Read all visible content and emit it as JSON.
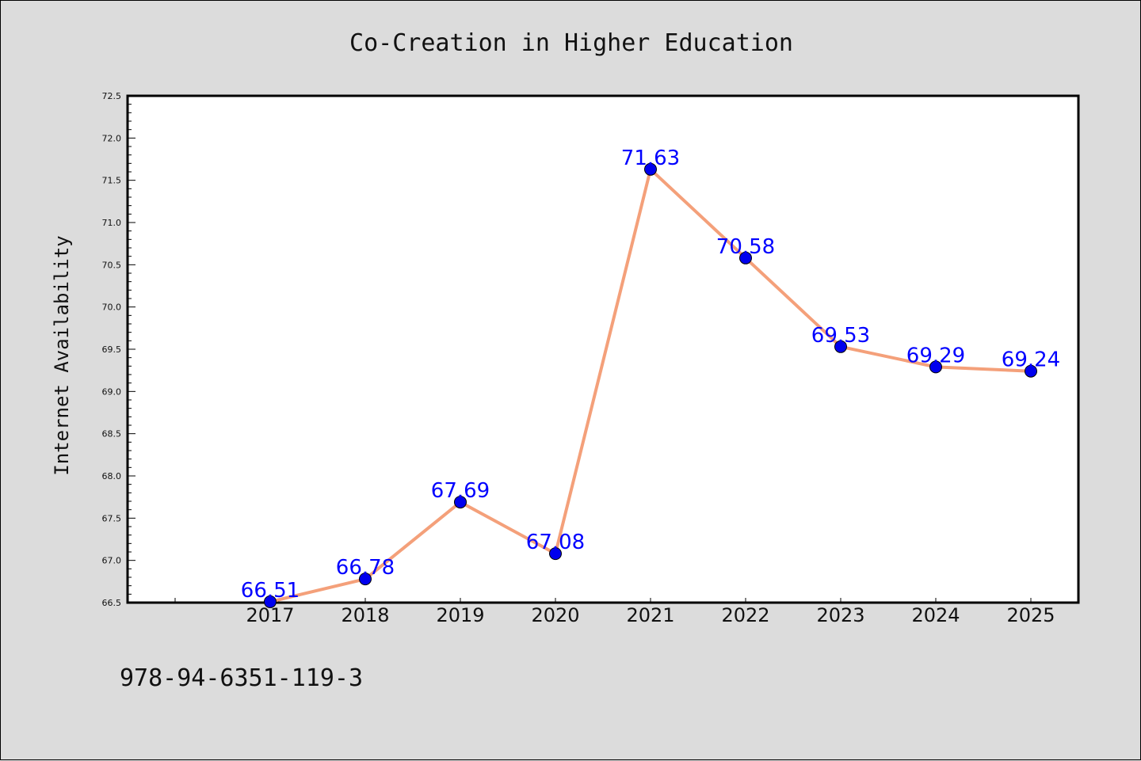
{
  "chart_data": {
    "type": "line",
    "title": "Co-Creation in Higher Education",
    "xlabel": "",
    "ylabel": "Internet Availability",
    "categories": [
      "2017",
      "2018",
      "2019",
      "2020",
      "2021",
      "2022",
      "2023",
      "2024",
      "2025"
    ],
    "values": [
      66.51,
      66.78,
      67.69,
      67.08,
      71.63,
      70.58,
      69.53,
      69.29,
      69.24
    ],
    "data_labels": [
      "66.51",
      "66.78",
      "67.69",
      "67.08",
      "71.63",
      "70.58",
      "69.53",
      "69.29",
      "69.24"
    ],
    "ylim": [
      66.5,
      72.5
    ],
    "yticks": [
      "66.5",
      "67.0",
      "67.5",
      "68.0",
      "68.5",
      "69.0",
      "69.5",
      "70.0",
      "70.5",
      "71.0",
      "71.5",
      "72.0",
      "72.5"
    ],
    "grid": false,
    "line_color": "#f4a07a",
    "marker_color": "#0000ee",
    "label_color": "#0000ff"
  },
  "footer_text": "978-94-6351-119-3"
}
